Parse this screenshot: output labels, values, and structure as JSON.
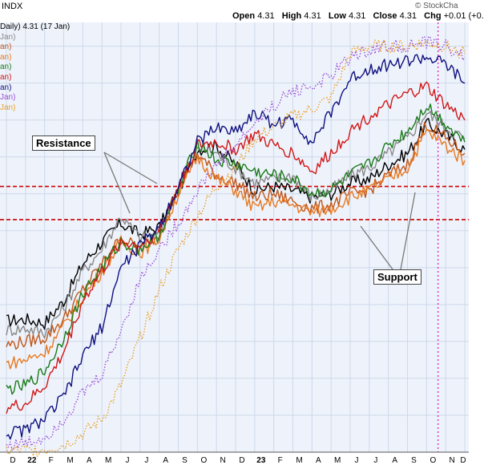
{
  "header": {
    "symbol_suffix": "INDX",
    "watermark": "© StockCha",
    "open_label": "Open",
    "open": "4.31",
    "high_label": "High",
    "high": "4.31",
    "low_label": "Low",
    "low": "4.31",
    "close_label": "Close",
    "close": "4.31",
    "chg_label": "Chg",
    "chg": "+0.01 (+0."
  },
  "legend": [
    {
      "text": "Daily) 4.31 (17 Jan)",
      "color": "#000000"
    },
    {
      "text": "Jan)",
      "color": "#888888"
    },
    {
      "text": "an)",
      "color": "#c0571a"
    },
    {
      "text": "an)",
      "color": "#e87820"
    },
    {
      "text": "an)",
      "color": "#1a7a1a"
    },
    {
      "text": "an)",
      "color": "#d01818"
    },
    {
      "text": "an)",
      "color": "#101080"
    },
    {
      "text": "Jan)",
      "color": "#9b4fd6"
    },
    {
      "text": "Jan)",
      "color": "#e8a030"
    }
  ],
  "annotations": {
    "resistance": "Resistance",
    "support": "Support"
  },
  "chart_data": {
    "type": "line",
    "x_ticks": [
      "D",
      "22",
      "F",
      "M",
      "A",
      "M",
      "J",
      "J",
      "A",
      "S",
      "O",
      "N",
      "D",
      "23",
      "F",
      "M",
      "A",
      "M",
      "J",
      "J",
      "A",
      "S",
      "O",
      "N",
      "D"
    ],
    "x_tick_years": [
      "22",
      "23"
    ],
    "x": [
      "2021-12",
      "2022-01",
      "2022-02",
      "2022-03",
      "2022-04",
      "2022-05",
      "2022-06",
      "2022-07",
      "2022-08",
      "2022-09",
      "2022-10",
      "2022-11",
      "2022-12",
      "2023-01",
      "2023-02",
      "2023-03",
      "2023-04",
      "2023-05",
      "2023-06",
      "2023-07",
      "2023-08",
      "2023-09",
      "2023-10",
      "2023-11",
      "2023-12"
    ],
    "ylim": [
      0,
      5.8
    ],
    "reference_lines": [
      {
        "name": "Resistance",
        "value": 3.6,
        "style": "dashed",
        "color": "#cc0000"
      },
      {
        "name": "Support",
        "value": 3.15,
        "style": "dashed",
        "color": "#cc0000"
      }
    ],
    "vertical_marker": {
      "x": "2023-10-19",
      "color": "#e020c0",
      "style": "dotted"
    },
    "grid": true,
    "series": [
      {
        "color": "#000000",
        "style": "solid",
        "values": [
          1.78,
          1.8,
          1.75,
          2.05,
          2.55,
          2.85,
          3.1,
          2.95,
          3.05,
          3.55,
          4.1,
          4.15,
          3.9,
          3.55,
          3.6,
          3.55,
          3.45,
          3.5,
          3.65,
          3.7,
          3.9,
          4.05,
          4.45,
          4.3,
          4.1
        ]
      },
      {
        "color": "#888888",
        "style": "solid",
        "values": [
          1.65,
          1.68,
          1.62,
          1.95,
          2.45,
          2.75,
          3.2,
          2.9,
          2.95,
          3.6,
          4.15,
          4.05,
          3.85,
          3.65,
          3.7,
          3.75,
          3.45,
          3.55,
          3.75,
          3.85,
          4.05,
          4.25,
          4.6,
          4.4,
          4.25
        ]
      },
      {
        "color": "#c0571a",
        "style": "solid",
        "values": [
          1.45,
          1.5,
          1.55,
          1.8,
          2.2,
          2.55,
          2.9,
          2.75,
          2.95,
          3.55,
          4.05,
          3.75,
          3.65,
          3.45,
          3.5,
          3.4,
          3.3,
          3.35,
          3.5,
          3.55,
          3.75,
          3.9,
          4.45,
          4.25,
          4.05
        ]
      },
      {
        "color": "#e87820",
        "style": "solid",
        "values": [
          1.2,
          1.25,
          1.35,
          1.7,
          2.1,
          2.45,
          2.85,
          2.7,
          2.9,
          3.5,
          4.0,
          3.7,
          3.55,
          3.3,
          3.4,
          3.35,
          3.25,
          3.3,
          3.45,
          3.55,
          3.7,
          3.85,
          4.35,
          4.15,
          3.95
        ]
      },
      {
        "color": "#1a7a1a",
        "style": "solid",
        "values": [
          0.85,
          0.9,
          1.1,
          1.55,
          2.15,
          2.5,
          2.85,
          2.75,
          2.95,
          3.55,
          4.2,
          3.95,
          3.9,
          3.8,
          3.75,
          3.7,
          3.5,
          3.55,
          3.75,
          3.9,
          4.15,
          4.35,
          4.7,
          4.45,
          4.2
        ]
      },
      {
        "color": "#d01818",
        "style": "solid",
        "values": [
          0.6,
          0.65,
          0.9,
          1.35,
          2.05,
          2.45,
          2.85,
          2.8,
          3.0,
          3.6,
          4.15,
          4.2,
          4.1,
          4.3,
          4.15,
          4.05,
          3.8,
          4.05,
          4.35,
          4.55,
          4.7,
          4.85,
          4.95,
          4.7,
          4.5
        ]
      },
      {
        "color": "#101080",
        "style": "solid",
        "values": [
          0.25,
          0.3,
          0.45,
          0.75,
          1.3,
          1.7,
          2.5,
          2.8,
          3.05,
          3.6,
          4.2,
          4.4,
          4.35,
          4.6,
          4.45,
          4.5,
          4.2,
          4.6,
          5.05,
          5.2,
          5.25,
          5.3,
          5.35,
          5.25,
          5.0
        ]
      },
      {
        "color": "#9b4fd6",
        "style": "dotted",
        "values": [
          0.1,
          0.12,
          0.2,
          0.45,
          0.8,
          1.05,
          1.65,
          2.35,
          2.75,
          3.1,
          3.55,
          3.9,
          4.15,
          4.45,
          4.7,
          4.9,
          4.95,
          5.1,
          5.35,
          5.45,
          5.5,
          5.5,
          5.55,
          5.5,
          5.35
        ]
      },
      {
        "color": "#e8a030",
        "style": "dotted",
        "values": [
          0.02,
          0.02,
          0.04,
          0.1,
          0.25,
          0.45,
          0.9,
          1.55,
          2.2,
          2.75,
          3.2,
          3.6,
          3.85,
          4.25,
          4.4,
          4.55,
          4.65,
          4.8,
          5.4,
          5.5,
          5.5,
          5.5,
          5.55,
          5.5,
          5.4
        ]
      }
    ]
  }
}
